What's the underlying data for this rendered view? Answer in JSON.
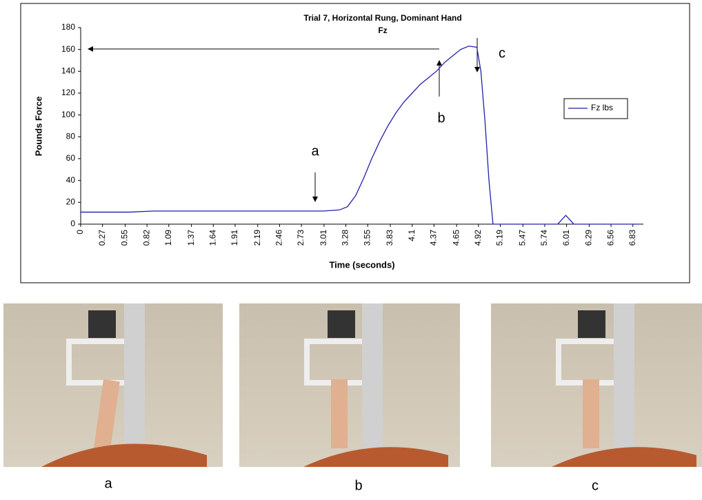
{
  "chart_data": {
    "type": "line",
    "title": "Trial 7, Horizontal Rung, Dominant Hand",
    "subtitle": "Fz",
    "x_label": "Time (seconds)",
    "y_label": "Pounds Force",
    "x": [
      0,
      0.3,
      0.6,
      0.9,
      1.2,
      1.5,
      1.8,
      2.1,
      2.4,
      2.7,
      3.0,
      3.2,
      3.3,
      3.4,
      3.5,
      3.6,
      3.7,
      3.8,
      3.9,
      4.0,
      4.1,
      4.2,
      4.3,
      4.4,
      4.5,
      4.6,
      4.7,
      4.8,
      4.9,
      4.95,
      5.0,
      5.05,
      5.1,
      5.3,
      5.6,
      5.9,
      6.0,
      6.1,
      6.3,
      6.6,
      6.9
    ],
    "series": [
      {
        "name": "Fz lbs",
        "color": "#1f1fa8",
        "values": [
          11,
          11,
          11,
          12,
          12,
          12,
          12,
          12,
          12,
          12,
          12,
          13,
          16,
          26,
          42,
          60,
          76,
          90,
          102,
          112,
          120,
          128,
          134,
          140,
          148,
          154,
          160,
          163,
          162,
          140,
          95,
          40,
          0,
          0,
          0,
          0,
          8,
          0,
          0,
          0,
          0
        ]
      }
    ],
    "xlim": [
      0,
      6.96
    ],
    "xticks": [
      0,
      0.27,
      0.55,
      0.82,
      1.09,
      1.37,
      1.64,
      1.91,
      2.19,
      2.46,
      2.73,
      3.01,
      3.28,
      3.55,
      3.83,
      4.1,
      4.37,
      4.65,
      4.92,
      5.19,
      5.47,
      5.74,
      6.01,
      6.29,
      6.56,
      6.83
    ],
    "ylim": [
      0,
      180
    ],
    "yticks": [
      0,
      20,
      40,
      60,
      80,
      100,
      120,
      140,
      160,
      180
    ],
    "annotations": [
      "a",
      "b",
      "c"
    ],
    "legend": "right"
  },
  "photos": [
    {
      "caption": "a"
    },
    {
      "caption": "b"
    },
    {
      "caption": "c"
    }
  ]
}
